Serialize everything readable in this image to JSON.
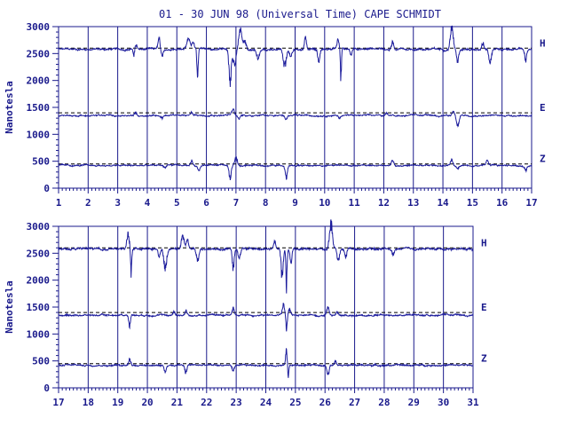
{
  "title": "01 - 30 JUN 98 (Universal Time) CAPE SCHMIDT",
  "colors": {
    "axis": "#1a1a8c",
    "trace": "#1c1c9c",
    "baseline": "#000000"
  },
  "chart_data": [
    {
      "type": "line",
      "panel": "top",
      "title": "01 - 30 JUN 98 (Universal Time) CAPE SCHMIDT",
      "ylabel": "Nanotesla",
      "xlabel": "",
      "x_ticks": [
        "1",
        "2",
        "3",
        "4",
        "5",
        "6",
        "7",
        "8",
        "9",
        "10",
        "11",
        "12",
        "13",
        "14",
        "15",
        "16",
        "17"
      ],
      "xlim": [
        1,
        17
      ],
      "ylim": [
        0,
        3000
      ],
      "y_ticks": [
        "0",
        "500",
        "1000",
        "1500",
        "2000",
        "2500",
        "3000"
      ],
      "grid": "vertical day lines",
      "series": [
        {
          "name": "H",
          "baseline": 2600,
          "level": 2580,
          "noise": 20,
          "events": [
            {
              "x": 3.6,
              "amp": 120,
              "w": 0.06
            },
            {
              "x": 3.55,
              "amp": -150,
              "w": 0.04
            },
            {
              "x": 4.4,
              "amp": 170,
              "w": 0.05
            },
            {
              "x": 4.5,
              "amp": -120,
              "w": 0.05
            },
            {
              "x": 5.4,
              "amp": 180,
              "w": 0.08
            },
            {
              "x": 5.55,
              "amp": 130,
              "w": 0.05
            },
            {
              "x": 5.7,
              "amp": -600,
              "w": 0.03
            },
            {
              "x": 6.8,
              "amp": -650,
              "w": 0.05
            },
            {
              "x": 6.95,
              "amp": -300,
              "w": 0.08
            },
            {
              "x": 7.15,
              "amp": 350,
              "w": 0.08
            },
            {
              "x": 7.3,
              "amp": 150,
              "w": 0.06
            },
            {
              "x": 7.75,
              "amp": -150,
              "w": 0.07
            },
            {
              "x": 8.65,
              "amp": -320,
              "w": 0.07
            },
            {
              "x": 8.85,
              "amp": -120,
              "w": 0.06
            },
            {
              "x": 9.35,
              "amp": 200,
              "w": 0.05
            },
            {
              "x": 9.8,
              "amp": -200,
              "w": 0.05
            },
            {
              "x": 10.45,
              "amp": 170,
              "w": 0.04
            },
            {
              "x": 10.55,
              "amp": -550,
              "w": 0.025
            },
            {
              "x": 10.9,
              "amp": -120,
              "w": 0.05
            },
            {
              "x": 12.3,
              "amp": 130,
              "w": 0.05
            },
            {
              "x": 14.3,
              "amp": 400,
              "w": 0.07
            },
            {
              "x": 14.5,
              "amp": -200,
              "w": 0.05
            },
            {
              "x": 15.35,
              "amp": 130,
              "w": 0.05
            },
            {
              "x": 15.6,
              "amp": -250,
              "w": 0.06
            },
            {
              "x": 16.8,
              "amp": -200,
              "w": 0.05
            }
          ]
        },
        {
          "name": "E",
          "baseline": 1400,
          "level": 1350,
          "noise": 15,
          "events": [
            {
              "x": 3.6,
              "amp": 60,
              "w": 0.05
            },
            {
              "x": 4.5,
              "amp": -60,
              "w": 0.05
            },
            {
              "x": 5.5,
              "amp": 60,
              "w": 0.05
            },
            {
              "x": 6.9,
              "amp": 120,
              "w": 0.06
            },
            {
              "x": 7.1,
              "amp": -60,
              "w": 0.05
            },
            {
              "x": 8.7,
              "amp": -80,
              "w": 0.05
            },
            {
              "x": 10.5,
              "amp": -60,
              "w": 0.04
            },
            {
              "x": 12.1,
              "amp": 60,
              "w": 0.05
            },
            {
              "x": 14.5,
              "amp": -200,
              "w": 0.06
            },
            {
              "x": 14.35,
              "amp": 60,
              "w": 0.05
            }
          ]
        },
        {
          "name": "Z",
          "baseline": 450,
          "level": 420,
          "noise": 15,
          "events": [
            {
              "x": 4.6,
              "amp": -60,
              "w": 0.06
            },
            {
              "x": 5.5,
              "amp": 90,
              "w": 0.05
            },
            {
              "x": 5.75,
              "amp": -80,
              "w": 0.05
            },
            {
              "x": 6.8,
              "amp": -250,
              "w": 0.05
            },
            {
              "x": 7.0,
              "amp": 150,
              "w": 0.06
            },
            {
              "x": 8.7,
              "amp": -220,
              "w": 0.05
            },
            {
              "x": 12.3,
              "amp": 110,
              "w": 0.05
            },
            {
              "x": 14.3,
              "amp": 100,
              "w": 0.05
            },
            {
              "x": 14.5,
              "amp": -50,
              "w": 0.05
            },
            {
              "x": 15.5,
              "amp": 90,
              "w": 0.05
            },
            {
              "x": 16.8,
              "amp": -90,
              "w": 0.05
            }
          ]
        }
      ]
    },
    {
      "type": "line",
      "panel": "bottom",
      "title": "",
      "ylabel": "Nanotesla",
      "xlabel": "",
      "x_ticks": [
        "17",
        "18",
        "19",
        "20",
        "21",
        "22",
        "23",
        "24",
        "25",
        "26",
        "27",
        "28",
        "29",
        "30",
        "31"
      ],
      "xlim": [
        17,
        31
      ],
      "ylim": [
        0,
        3000
      ],
      "y_ticks": [
        "0",
        "500",
        "1000",
        "1500",
        "2000",
        "2500",
        "3000"
      ],
      "grid": "vertical day lines",
      "series": [
        {
          "name": "H",
          "baseline": 2600,
          "level": 2580,
          "noise": 20,
          "events": [
            {
              "x": 19.35,
              "amp": 300,
              "w": 0.06
            },
            {
              "x": 19.45,
              "amp": -450,
              "w": 0.03
            },
            {
              "x": 20.6,
              "amp": -350,
              "w": 0.07
            },
            {
              "x": 20.4,
              "amp": -150,
              "w": 0.05
            },
            {
              "x": 21.2,
              "amp": 250,
              "w": 0.07
            },
            {
              "x": 21.35,
              "amp": 180,
              "w": 0.05
            },
            {
              "x": 21.7,
              "amp": -200,
              "w": 0.06
            },
            {
              "x": 22.9,
              "amp": -350,
              "w": 0.05
            },
            {
              "x": 23.1,
              "amp": -150,
              "w": 0.06
            },
            {
              "x": 24.3,
              "amp": 120,
              "w": 0.05
            },
            {
              "x": 24.55,
              "amp": -500,
              "w": 0.05
            },
            {
              "x": 24.7,
              "amp": -650,
              "w": 0.03
            },
            {
              "x": 24.85,
              "amp": -250,
              "w": 0.05
            },
            {
              "x": 26.2,
              "amp": 450,
              "w": 0.07
            },
            {
              "x": 26.45,
              "amp": -250,
              "w": 0.05
            },
            {
              "x": 26.7,
              "amp": -150,
              "w": 0.05
            },
            {
              "x": 28.3,
              "amp": -100,
              "w": 0.06
            }
          ]
        },
        {
          "name": "E",
          "baseline": 1400,
          "level": 1350,
          "noise": 15,
          "events": [
            {
              "x": 19.4,
              "amp": -200,
              "w": 0.04
            },
            {
              "x": 20.9,
              "amp": 70,
              "w": 0.05
            },
            {
              "x": 21.3,
              "amp": 80,
              "w": 0.05
            },
            {
              "x": 22.9,
              "amp": 120,
              "w": 0.05
            },
            {
              "x": 24.6,
              "amp": 200,
              "w": 0.05
            },
            {
              "x": 24.7,
              "amp": -250,
              "w": 0.03
            },
            {
              "x": 24.8,
              "amp": 120,
              "w": 0.05
            },
            {
              "x": 26.1,
              "amp": 150,
              "w": 0.06
            },
            {
              "x": 26.4,
              "amp": 80,
              "w": 0.05
            }
          ]
        },
        {
          "name": "Z",
          "baseline": 450,
          "level": 420,
          "noise": 15,
          "events": [
            {
              "x": 19.4,
              "amp": 120,
              "w": 0.05
            },
            {
              "x": 20.6,
              "amp": -120,
              "w": 0.05
            },
            {
              "x": 21.3,
              "amp": -150,
              "w": 0.05
            },
            {
              "x": 22.9,
              "amp": -100,
              "w": 0.05
            },
            {
              "x": 24.7,
              "amp": 280,
              "w": 0.04
            },
            {
              "x": 24.75,
              "amp": -250,
              "w": 0.03
            },
            {
              "x": 26.1,
              "amp": -200,
              "w": 0.05
            },
            {
              "x": 26.35,
              "amp": 80,
              "w": 0.05
            }
          ]
        }
      ]
    }
  ]
}
